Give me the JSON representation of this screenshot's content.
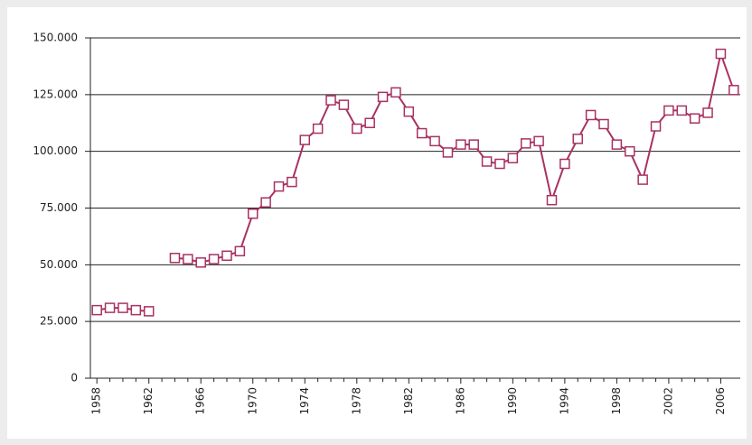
{
  "chart_data": {
    "type": "line",
    "x": [
      1958,
      1959,
      1960,
      1961,
      1962,
      1963,
      1964,
      1965,
      1966,
      1967,
      1968,
      1969,
      1970,
      1971,
      1972,
      1973,
      1974,
      1975,
      1976,
      1977,
      1978,
      1979,
      1980,
      1981,
      1982,
      1983,
      1984,
      1985,
      1986,
      1987,
      1988,
      1989,
      1990,
      1991,
      1992,
      1993,
      1994,
      1995,
      1996,
      1997,
      1998,
      1999,
      2000,
      2001,
      2002,
      2003,
      2004,
      2005,
      2006,
      2007
    ],
    "values": [
      30000,
      31000,
      31000,
      30000,
      29500,
      null,
      53000,
      52500,
      51000,
      52500,
      54000,
      56000,
      72500,
      77500,
      84500,
      86500,
      105000,
      110000,
      122500,
      120500,
      110000,
      112500,
      124000,
      126000,
      117500,
      108000,
      104500,
      99500,
      103000,
      103000,
      95500,
      94500,
      97000,
      103500,
      104500,
      78500,
      94500,
      105500,
      116000,
      112000,
      103000,
      100000,
      87500,
      111000,
      118000,
      118000,
      114500,
      117000,
      143000,
      127000
    ],
    "color": "#a83262",
    "xlim": [
      1957.5,
      2007.5
    ],
    "xticks": [
      1958,
      1962,
      1966,
      1970,
      1974,
      1978,
      1982,
      1986,
      1990,
      1994,
      1998,
      2002,
      2006
    ],
    "ylim": [
      0,
      150000
    ],
    "yticks": [
      0,
      {
        "value": 25000,
        "label": "25.000"
      },
      {
        "value": 50000,
        "label": "50.000"
      },
      {
        "value": 75000,
        "label": "75.000"
      },
      {
        "value": 100000,
        "label": "100.000"
      },
      {
        "value": 125000,
        "label": "125.000"
      },
      {
        "value": 150000,
        "label": "150.000"
      }
    ],
    "grid": true
  }
}
